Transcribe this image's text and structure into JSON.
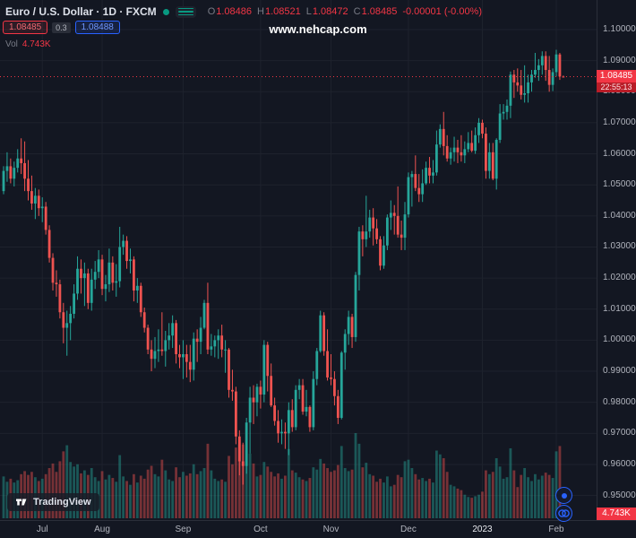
{
  "header": {
    "symbol_title": "Euro / U.S. Dollar · 1D · FXCM",
    "ohlc": {
      "o_label": "O",
      "o": "1.08486",
      "h_label": "H",
      "h": "1.08521",
      "l_label": "L",
      "l": "1.08472",
      "c_label": "C",
      "c": "1.08485",
      "change": "-0.00001 (-0.00%)"
    },
    "sell_price": "1.08485",
    "spread": "0.3",
    "buy_price": "1.08488",
    "vol_label": "Vol",
    "vol_value": "4.743K"
  },
  "watermark": "www.nehcap.com",
  "price_axis": {
    "labels": [
      "1.10000",
      "1.09000",
      "1.08000",
      "1.07000",
      "1.06000",
      "1.05000",
      "1.04000",
      "1.03000",
      "1.02000",
      "1.01000",
      "1.00000",
      "0.99000",
      "0.98000",
      "0.97000",
      "0.96000",
      "0.95000"
    ],
    "current_price": "1.08485",
    "countdown": "22:55:13"
  },
  "volume_axis": {
    "current": "4.743K"
  },
  "attribution": {
    "text": "TradingView"
  },
  "chart_data": {
    "type": "candlestick",
    "symbol": "EURUSD",
    "title": "Euro / U.S. Dollar",
    "interval": "1D",
    "exchange": "FXCM",
    "price_range": [
      0.95,
      1.1
    ],
    "grid_step": 0.01,
    "legend_position": "top-left",
    "grid": true,
    "columns": [
      "open",
      "high",
      "low",
      "close",
      "volume_k"
    ],
    "months": [
      {
        "text": "Jul",
        "i": 11
      },
      {
        "text": "Aug",
        "i": 28
      },
      {
        "text": "Sep",
        "i": 51
      },
      {
        "text": "Oct",
        "i": 73
      },
      {
        "text": "Nov",
        "i": 93
      },
      {
        "text": "Dec",
        "i": 115
      },
      {
        "text": "2023",
        "i": 136,
        "bright": true
      },
      {
        "text": "Feb",
        "i": 157
      }
    ],
    "current": {
      "open": 1.08486,
      "high": 1.08521,
      "low": 1.08472,
      "close": 1.08485,
      "change": -1e-05,
      "change_pct": "-0.00%",
      "volume_k": 4.743,
      "countdown": "22:55:13"
    },
    "colors": {
      "up": "#26a69a",
      "down": "#ef5350",
      "accent_red": "#f23645",
      "accent_blue": "#2962ff"
    },
    "candles": [
      [
        1.048,
        1.056,
        1.047,
        1.0545,
        55
      ],
      [
        1.0545,
        1.0605,
        1.051,
        1.056,
        48
      ],
      [
        1.056,
        1.0585,
        1.0505,
        1.052,
        52
      ],
      [
        1.052,
        1.0575,
        1.0495,
        1.0555,
        47
      ],
      [
        1.0555,
        1.0615,
        1.054,
        1.0585,
        50
      ],
      [
        1.0585,
        1.065,
        1.0535,
        1.057,
        58
      ],
      [
        1.057,
        1.064,
        1.048,
        1.052,
        62
      ],
      [
        1.052,
        1.058,
        1.045,
        1.048,
        57
      ],
      [
        1.048,
        1.053,
        1.042,
        1.044,
        61
      ],
      [
        1.044,
        1.049,
        1.039,
        1.0465,
        54
      ],
      [
        1.0465,
        1.0485,
        1.04,
        1.0425,
        49
      ],
      [
        1.0425,
        1.046,
        1.038,
        1.043,
        52
      ],
      [
        1.043,
        1.0445,
        1.034,
        1.0355,
        58
      ],
      [
        1.0355,
        1.037,
        1.025,
        1.0265,
        66
      ],
      [
        1.0265,
        1.028,
        1.016,
        1.0185,
        72
      ],
      [
        1.0185,
        1.0225,
        1.014,
        1.018,
        61
      ],
      [
        1.018,
        1.0195,
        1.007,
        1.009,
        75
      ],
      [
        1.009,
        1.012,
        0.999,
        1.004,
        88
      ],
      [
        1.004,
        1.0095,
        0.995,
        1.0055,
        96
      ],
      [
        1.0055,
        1.011,
        1.0,
        1.0085,
        74
      ],
      [
        1.0085,
        1.018,
        1.007,
        1.015,
        68
      ],
      [
        1.015,
        1.027,
        1.013,
        1.023,
        71
      ],
      [
        1.023,
        1.026,
        1.015,
        1.02,
        59
      ],
      [
        1.02,
        1.025,
        1.011,
        1.0215,
        63
      ],
      [
        1.0215,
        1.023,
        1.01,
        1.012,
        57
      ],
      [
        1.012,
        1.023,
        1.0095,
        1.0195,
        66
      ],
      [
        1.0195,
        1.0255,
        1.0165,
        1.022,
        54
      ],
      [
        1.022,
        1.029,
        1.02,
        1.026,
        49
      ],
      [
        1.026,
        1.0275,
        1.0145,
        1.0165,
        62
      ],
      [
        1.0165,
        1.021,
        1.0125,
        1.018,
        51
      ],
      [
        1.018,
        1.0295,
        1.0155,
        1.025,
        57
      ],
      [
        1.025,
        1.027,
        1.016,
        1.0185,
        53
      ],
      [
        1.0185,
        1.0245,
        1.014,
        1.019,
        48
      ],
      [
        1.019,
        1.0365,
        1.017,
        1.03,
        83
      ],
      [
        1.03,
        1.034,
        1.0275,
        1.032,
        55
      ],
      [
        1.032,
        1.0335,
        1.023,
        1.0255,
        49
      ],
      [
        1.0255,
        1.0295,
        1.0215,
        1.026,
        44
      ],
      [
        1.026,
        1.027,
        1.0125,
        1.016,
        58
      ],
      [
        1.016,
        1.02,
        1.012,
        1.0175,
        47
      ],
      [
        1.0175,
        1.0185,
        1.0075,
        1.009,
        56
      ],
      [
        1.009,
        1.0105,
        1.0025,
        1.004,
        52
      ],
      [
        1.004,
        1.005,
        0.9955,
        0.997,
        64
      ],
      [
        0.997,
        1.0,
        0.99,
        0.994,
        69
      ],
      [
        0.994,
        1.001,
        0.991,
        0.9965,
        58
      ],
      [
        0.9965,
        1.0035,
        0.993,
        0.997,
        55
      ],
      [
        0.997,
        1.009,
        0.995,
        0.9965,
        77
      ],
      [
        0.9965,
        1.003,
        0.9915,
        1.0,
        63
      ],
      [
        1.0,
        1.0055,
        0.997,
        1.0015,
        51
      ],
      [
        1.0015,
        1.008,
        0.9975,
        1.0055,
        49
      ],
      [
        1.0055,
        1.0065,
        0.9925,
        0.9955,
        67
      ],
      [
        0.9955,
        0.9985,
        0.991,
        0.9945,
        54
      ],
      [
        0.9945,
        1.0,
        0.9875,
        0.9955,
        61
      ],
      [
        0.9955,
        0.9985,
        0.988,
        0.993,
        56
      ],
      [
        0.993,
        0.9985,
        0.9865,
        0.9905,
        59
      ],
      [
        0.9905,
        1.0025,
        0.987,
        1.0005,
        71
      ],
      [
        1.0005,
        1.0035,
        0.993,
        0.9995,
        58
      ],
      [
        0.9995,
        1.0075,
        0.9955,
        1.004,
        62
      ],
      [
        1.004,
        1.013,
        1.0035,
        1.012,
        66
      ],
      [
        1.012,
        1.0185,
        0.9955,
        0.997,
        98
      ],
      [
        0.997,
        1.002,
        0.995,
        0.998,
        63
      ],
      [
        0.998,
        1.0015,
        0.9945,
        1.0,
        52
      ],
      [
        1.0,
        1.0035,
        0.994,
        1.0015,
        49
      ],
      [
        1.0015,
        1.005,
        0.9945,
        0.997,
        51
      ],
      [
        0.997,
        1.0,
        0.9895,
        0.997,
        48
      ],
      [
        0.997,
        0.9975,
        0.9815,
        0.984,
        82
      ],
      [
        0.984,
        0.9905,
        0.9805,
        0.9835,
        71
      ],
      [
        0.9835,
        0.985,
        0.9665,
        0.969,
        93
      ],
      [
        0.969,
        0.971,
        0.9565,
        0.961,
        104
      ],
      [
        0.961,
        0.967,
        0.9535,
        0.9595,
        97
      ],
      [
        0.9595,
        0.975,
        0.957,
        0.9735,
        89
      ],
      [
        0.9735,
        0.985,
        0.9635,
        0.9815,
        85
      ],
      [
        0.9815,
        0.9855,
        0.973,
        0.98,
        72
      ],
      [
        0.98,
        0.986,
        0.9755,
        0.985,
        55
      ],
      [
        0.985,
        0.987,
        0.978,
        0.9825,
        57
      ],
      [
        0.9825,
        1.0,
        0.98,
        0.9985,
        74
      ],
      [
        0.9985,
        0.9995,
        0.9835,
        0.9885,
        68
      ],
      [
        0.9885,
        0.9925,
        0.9785,
        0.979,
        61
      ],
      [
        0.979,
        0.9815,
        0.9725,
        0.974,
        55
      ],
      [
        0.974,
        0.9775,
        0.967,
        0.97,
        59
      ],
      [
        0.97,
        0.9745,
        0.9665,
        0.9705,
        52
      ],
      [
        0.9705,
        0.9735,
        0.965,
        0.97,
        56
      ],
      [
        0.97,
        0.98,
        0.963,
        0.9775,
        91
      ],
      [
        0.9775,
        0.981,
        0.9705,
        0.972,
        63
      ],
      [
        0.972,
        0.9855,
        0.971,
        0.984,
        60
      ],
      [
        0.984,
        0.9875,
        0.981,
        0.9855,
        54
      ],
      [
        0.9855,
        0.9875,
        0.976,
        0.977,
        51
      ],
      [
        0.977,
        0.984,
        0.9755,
        0.9785,
        49
      ],
      [
        0.9785,
        0.979,
        0.9705,
        0.972,
        53
      ],
      [
        0.972,
        0.99,
        0.971,
        0.9875,
        67
      ],
      [
        0.9875,
        0.9975,
        0.9855,
        0.9965,
        64
      ],
      [
        0.9965,
        1.0095,
        0.996,
        1.008,
        78
      ],
      [
        1.008,
        1.009,
        0.995,
        0.9965,
        72
      ],
      [
        0.9965,
        1.0035,
        0.987,
        0.988,
        66
      ],
      [
        0.988,
        0.9955,
        0.9855,
        0.9875,
        61
      ],
      [
        0.9875,
        0.99,
        0.979,
        0.982,
        63
      ],
      [
        0.982,
        0.984,
        0.973,
        0.975,
        70
      ],
      [
        0.975,
        0.9965,
        0.9745,
        0.996,
        95
      ],
      [
        0.996,
        1.0035,
        0.9905,
        1.002,
        66
      ],
      [
        1.002,
        1.0095,
        0.9985,
        1.0075,
        62
      ],
      [
        1.0075,
        1.0085,
        0.9975,
        1.001,
        64
      ],
      [
        1.001,
        1.022,
        0.9995,
        1.021,
        112
      ],
      [
        1.021,
        1.0365,
        1.016,
        1.035,
        98
      ],
      [
        1.035,
        1.037,
        1.027,
        1.0325,
        67
      ],
      [
        1.0325,
        1.0465,
        1.03,
        1.035,
        73
      ],
      [
        1.035,
        1.042,
        1.033,
        1.0395,
        58
      ],
      [
        1.0395,
        1.0425,
        1.0305,
        1.036,
        56
      ],
      [
        1.036,
        1.039,
        1.031,
        1.0325,
        48
      ],
      [
        1.0325,
        1.0335,
        1.0225,
        1.024,
        52
      ],
      [
        1.024,
        1.0335,
        1.023,
        1.0305,
        47
      ],
      [
        1.0305,
        1.0405,
        1.029,
        1.0395,
        55
      ],
      [
        1.0395,
        1.045,
        1.0355,
        1.041,
        42
      ],
      [
        1.041,
        1.0435,
        1.034,
        1.04,
        44
      ],
      [
        1.04,
        1.0495,
        1.033,
        1.034,
        57
      ],
      [
        1.034,
        1.0385,
        1.029,
        1.033,
        54
      ],
      [
        1.033,
        1.0445,
        1.029,
        1.0405,
        75
      ],
      [
        1.0405,
        1.054,
        1.0395,
        1.0525,
        77
      ],
      [
        1.0525,
        1.0545,
        1.043,
        1.0535,
        66
      ],
      [
        1.0535,
        1.0595,
        1.048,
        1.049,
        58
      ],
      [
        1.049,
        1.0535,
        1.0445,
        1.047,
        51
      ],
      [
        1.047,
        1.055,
        1.0445,
        1.0505,
        53
      ],
      [
        1.0505,
        1.0575,
        1.05,
        1.0555,
        49
      ],
      [
        1.0555,
        1.059,
        1.0505,
        1.053,
        52
      ],
      [
        1.053,
        1.058,
        1.0505,
        1.054,
        47
      ],
      [
        1.054,
        1.0675,
        1.053,
        1.063,
        89
      ],
      [
        1.063,
        1.0695,
        1.062,
        1.068,
        84
      ],
      [
        1.068,
        1.0735,
        1.0595,
        1.0625,
        79
      ],
      [
        1.0625,
        1.066,
        1.0575,
        1.0585,
        61
      ],
      [
        1.0585,
        1.062,
        1.0565,
        1.0605,
        44
      ],
      [
        1.0605,
        1.0655,
        1.0575,
        1.062,
        42
      ],
      [
        1.062,
        1.0645,
        1.057,
        1.0605,
        39
      ],
      [
        1.0605,
        1.066,
        1.0575,
        1.0595,
        37
      ],
      [
        1.0595,
        1.064,
        1.057,
        1.0615,
        31
      ],
      [
        1.0615,
        1.067,
        1.0605,
        1.0635,
        28
      ],
      [
        1.0635,
        1.0675,
        1.0605,
        1.061,
        27
      ],
      [
        1.061,
        1.0685,
        1.06,
        1.066,
        29
      ],
      [
        1.066,
        1.0715,
        1.0635,
        1.07,
        31
      ],
      [
        1.07,
        1.071,
        1.065,
        1.0665,
        35
      ],
      [
        1.0665,
        1.0685,
        1.052,
        1.0545,
        63
      ],
      [
        1.0545,
        1.0635,
        1.052,
        1.0605,
        58
      ],
      [
        1.0605,
        1.0635,
        1.0515,
        1.052,
        61
      ],
      [
        1.052,
        1.065,
        1.0485,
        1.0645,
        79
      ],
      [
        1.0645,
        1.076,
        1.0635,
        1.073,
        68
      ],
      [
        1.073,
        1.076,
        1.071,
        1.0735,
        52
      ],
      [
        1.0735,
        1.0775,
        1.071,
        1.0755,
        54
      ],
      [
        1.0755,
        1.0865,
        1.0715,
        1.0855,
        92
      ],
      [
        1.0855,
        1.087,
        1.078,
        1.083,
        63
      ],
      [
        1.083,
        1.0875,
        1.08,
        1.082,
        41
      ],
      [
        1.082,
        1.087,
        1.0775,
        1.079,
        57
      ],
      [
        1.079,
        1.0885,
        1.0765,
        1.0795,
        66
      ],
      [
        1.0795,
        1.0855,
        1.0765,
        1.083,
        54
      ],
      [
        1.083,
        1.087,
        1.08,
        1.0855,
        49
      ],
      [
        1.0855,
        1.0925,
        1.0845,
        1.087,
        58
      ],
      [
        1.087,
        1.0905,
        1.0835,
        1.0885,
        51
      ],
      [
        1.0885,
        1.093,
        1.0855,
        1.0915,
        56
      ],
      [
        1.0915,
        1.093,
        1.0835,
        1.087,
        60
      ],
      [
        1.087,
        1.0915,
        1.08,
        1.0822,
        57
      ],
      [
        1.0822,
        1.0875,
        1.0802,
        1.0863,
        53
      ],
      [
        1.0863,
        1.0935,
        1.085,
        1.092,
        88
      ],
      [
        1.092,
        1.0925,
        1.0838,
        1.0849,
        95
      ],
      [
        1.08486,
        1.08521,
        1.08472,
        1.08485,
        4.743
      ]
    ]
  }
}
